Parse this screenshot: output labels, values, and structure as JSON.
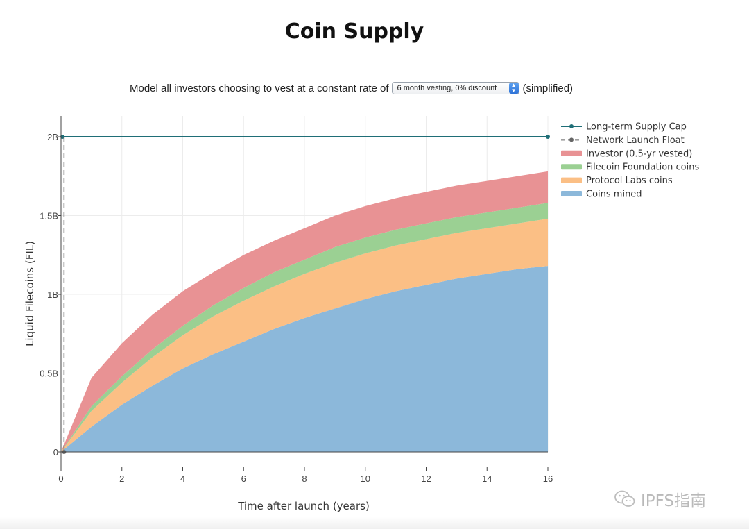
{
  "page": {
    "title": "Coin Supply"
  },
  "controls": {
    "prompt": "Model all investors choosing to vest at a constant rate of",
    "selected_option": "6 month vesting, 0% discount",
    "suffix": "(simplified)"
  },
  "watermark": {
    "text": "IPFS指南",
    "icon": "wechat-icon"
  },
  "chart_data": {
    "type": "area",
    "title": "",
    "xlabel": "Time after launch (years)",
    "ylabel": "Liquid Filecoins (FIL)",
    "xlim": [
      0,
      16
    ],
    "ylim": [
      0,
      2.15
    ],
    "x_ticks": [
      0,
      2,
      4,
      6,
      8,
      10,
      12,
      14,
      16
    ],
    "x_tick_labels": [
      "0",
      "2",
      "4",
      "6",
      "8",
      "10",
      "12",
      "14",
      "16"
    ],
    "y_ticks": [
      0,
      0.5,
      1,
      1.5,
      2
    ],
    "y_tick_labels": [
      "0",
      "0.5B",
      "1B",
      "1.5B",
      "2B"
    ],
    "grid": true,
    "legend_position": "right",
    "stacked": true,
    "x": [
      0,
      1,
      2,
      3,
      4,
      5,
      6,
      7,
      8,
      9,
      10,
      11,
      12,
      13,
      14,
      15,
      16
    ],
    "series": [
      {
        "name": "Coins mined",
        "color": "#8cb8da",
        "values": [
          0,
          0.16,
          0.3,
          0.42,
          0.53,
          0.62,
          0.7,
          0.78,
          0.85,
          0.91,
          0.97,
          1.02,
          1.06,
          1.1,
          1.13,
          1.16,
          1.18
        ]
      },
      {
        "name": "Protocol Labs coins",
        "color": "#fbbf85",
        "values": [
          0,
          0.1,
          0.14,
          0.18,
          0.21,
          0.24,
          0.26,
          0.27,
          0.28,
          0.29,
          0.29,
          0.29,
          0.29,
          0.29,
          0.29,
          0.29,
          0.3
        ]
      },
      {
        "name": "Filecoin Foundation coins",
        "color": "#9bd093",
        "values": [
          0,
          0.03,
          0.04,
          0.05,
          0.06,
          0.07,
          0.08,
          0.09,
          0.09,
          0.1,
          0.1,
          0.1,
          0.1,
          0.1,
          0.1,
          0.1,
          0.1
        ]
      },
      {
        "name": "Investor (0.5-yr vested)",
        "color": "#e89294",
        "values": [
          0,
          0.18,
          0.21,
          0.22,
          0.22,
          0.21,
          0.21,
          0.2,
          0.2,
          0.2,
          0.2,
          0.2,
          0.2,
          0.2,
          0.2,
          0.2,
          0.2
        ]
      }
    ],
    "lines": [
      {
        "name": "Long-term Supply Cap",
        "color": "#1f6e77",
        "style": "solid",
        "orientation": "horizontal",
        "value": 2
      },
      {
        "name": "Network Launch Float",
        "color": "#666666",
        "style": "dashed",
        "orientation": "vertical",
        "value": 0.1
      }
    ],
    "legend_order": [
      "Long-term Supply Cap",
      "Network Launch Float",
      "Investor (0.5-yr vested)",
      "Filecoin Foundation coins",
      "Protocol Labs coins",
      "Coins mined"
    ]
  }
}
